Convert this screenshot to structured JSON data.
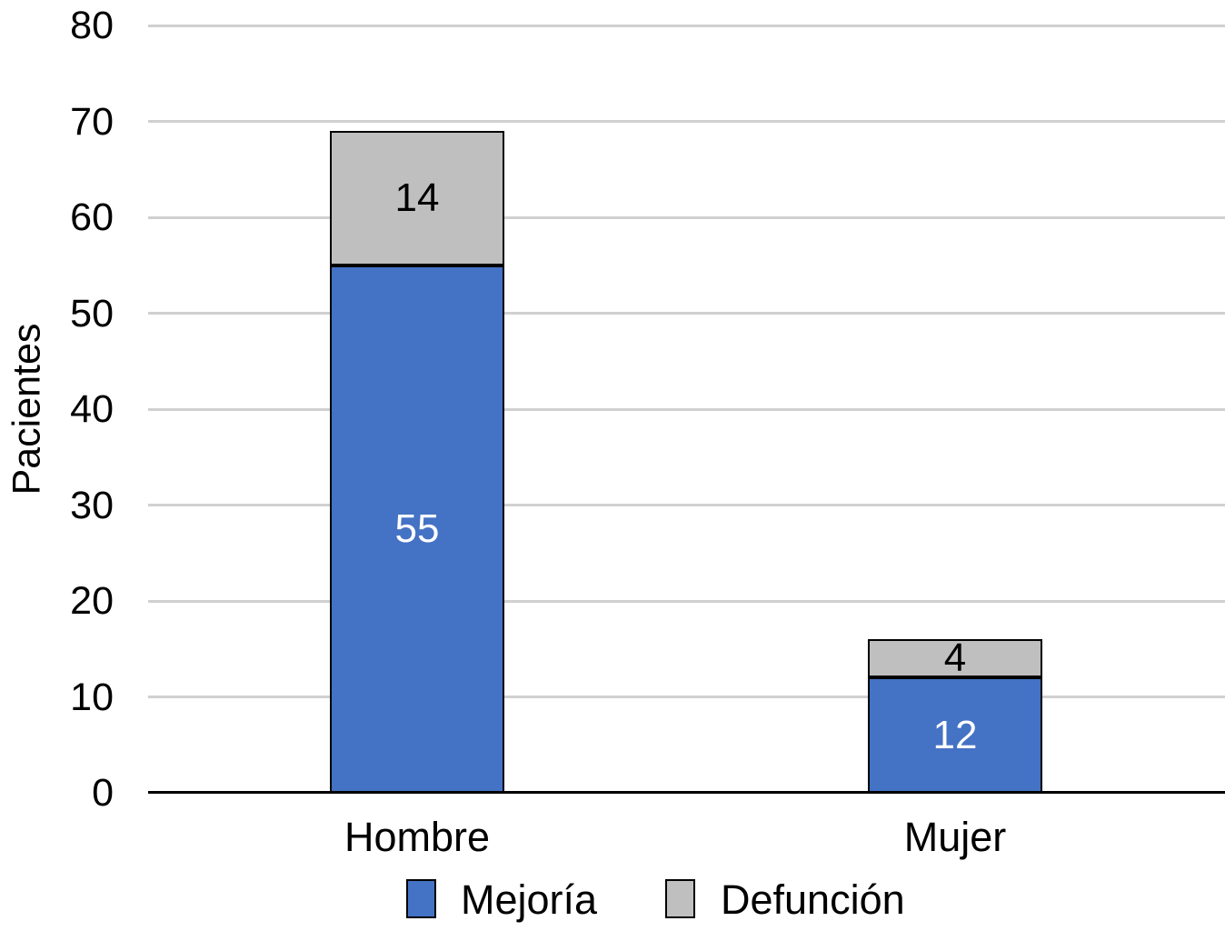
{
  "chart_data": {
    "type": "bar",
    "stacked": true,
    "title": "",
    "xlabel": "",
    "ylabel": "Pacientes",
    "categories": [
      "Hombre",
      "Mujer"
    ],
    "series": [
      {
        "name": "Mejoría",
        "color": "#4472C4",
        "label_color": "#FFFFFF",
        "values": [
          55,
          12
        ]
      },
      {
        "name": "Defunción",
        "color": "#BFBFBF",
        "label_color": "#000000",
        "values": [
          14,
          4
        ]
      }
    ],
    "totals": [
      69,
      16
    ],
    "y_ticks": [
      0,
      10,
      20,
      30,
      40,
      50,
      60,
      70,
      80
    ],
    "ylim": [
      0,
      80
    ],
    "grid": true,
    "legend_position": "bottom"
  },
  "colors": {
    "background": "#FFFFFF",
    "axis": "#000000",
    "gridline": "#D0D0D0",
    "bar_border": "#000000",
    "blue_series": "#4472C4",
    "gray_series": "#BFBFBF"
  }
}
